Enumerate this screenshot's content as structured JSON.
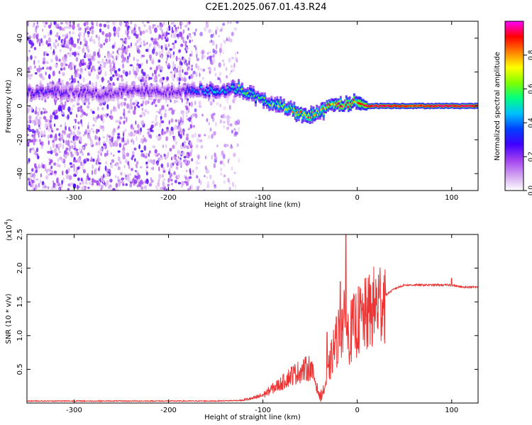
{
  "title": "C2E1.2025.067.01.43.R24",
  "chart_data": [
    {
      "type": "heatmap",
      "xlabel": "Height of straight line (km)",
      "ylabel": "Frequency (Hz)",
      "xlim": [
        -350,
        128
      ],
      "ylim": [
        -50,
        50
      ],
      "xticks": [
        -300,
        -200,
        -100,
        0,
        100
      ],
      "yticks": [
        -40,
        -20,
        0,
        20,
        40
      ],
      "colorbar": {
        "label": "Normalized spectral amplitude",
        "range": [
          0,
          1
        ],
        "ticks": [
          "0.0",
          "0.2",
          "0.4",
          "0.6",
          "0.8"
        ],
        "tick_values": [
          0.0,
          0.2,
          0.4,
          0.6,
          0.8
        ],
        "colormap": [
          "#ffffff",
          "#d0a0f0",
          "#a040f0",
          "#4000ff",
          "#0040ff",
          "#00c0ff",
          "#00ff80",
          "#80ff00",
          "#ffff00",
          "#ff8000",
          "#ff0000",
          "#ff00ff"
        ]
      },
      "noise_regions": [
        {
          "x": [
            -350,
            -175
          ],
          "y": [
            -50,
            50
          ],
          "density": 0.9
        },
        {
          "x": [
            -175,
            -125
          ],
          "y": [
            -50,
            50
          ],
          "density": 0.45
        }
      ],
      "signal_track": {
        "x": [
          -350,
          -330,
          -300,
          -270,
          -240,
          -210,
          -185,
          -175,
          -160,
          -140,
          -125,
          -110,
          -100,
          -90,
          -80,
          -70,
          -60,
          -50,
          -40,
          -30,
          -20,
          -10,
          0,
          10,
          30,
          60,
          90,
          128
        ],
        "y": [
          8,
          8,
          8,
          7,
          9,
          8,
          9,
          10,
          9,
          9,
          10,
          6,
          3,
          2,
          0,
          -2,
          -5,
          -5,
          -4,
          -1,
          1,
          1,
          2,
          0,
          0,
          0,
          0,
          0
        ],
        "amplitude": [
          0.3,
          0.3,
          0.25,
          0.25,
          0.25,
          0.25,
          0.25,
          0.4,
          0.45,
          0.5,
          0.6,
          0.6,
          0.55,
          0.65,
          0.7,
          0.75,
          0.8,
          0.8,
          0.75,
          0.85,
          0.9,
          0.9,
          0.9,
          0.95,
          0.95,
          0.9,
          0.95,
          0.95
        ]
      }
    },
    {
      "type": "line",
      "xlabel": "Height of straight line (km)",
      "ylabel": "SNR (10 * v/v)",
      "y_exponent_label": "(x10",
      "y_exponent": "4",
      "y_exponent_close": ")",
      "xlim": [
        -350,
        128
      ],
      "ylim": [
        0,
        25000
      ],
      "xticks": [
        -300,
        -200,
        -100,
        0,
        100
      ],
      "yticks": [
        5000,
        10000,
        15000,
        20000,
        25000
      ],
      "ytick_labels": [
        "0.5",
        "1.0",
        "1.5",
        "2.0",
        "2.5"
      ],
      "series": [
        {
          "color": "#ee3333",
          "x": [
            -350,
            -300,
            -250,
            -200,
            -150,
            -120,
            -110,
            -100,
            -90,
            -80,
            -70,
            -60,
            -50,
            -45,
            -40,
            -35,
            -30,
            -25,
            -20,
            -15,
            -10,
            -5,
            0,
            5,
            10,
            20,
            30,
            40,
            50,
            60,
            80,
            100,
            110,
            128
          ],
          "y": [
            300,
            300,
            300,
            300,
            300,
            400,
            600,
            1000,
            1800,
            2500,
            3500,
            4000,
            4500,
            3000,
            800,
            2000,
            5000,
            8000,
            10000,
            12000,
            10000,
            11000,
            12000,
            12500,
            13000,
            14500,
            16000,
            17000,
            17500,
            17500,
            17500,
            17500,
            17200,
            17200
          ],
          "spikes": [
            {
              "x": -32,
              "y": 10500
            },
            {
              "x": -18,
              "y": 18000
            },
            {
              "x": -12,
              "y": 25000
            },
            {
              "x": 100,
              "y": 18500
            }
          ]
        }
      ]
    }
  ]
}
